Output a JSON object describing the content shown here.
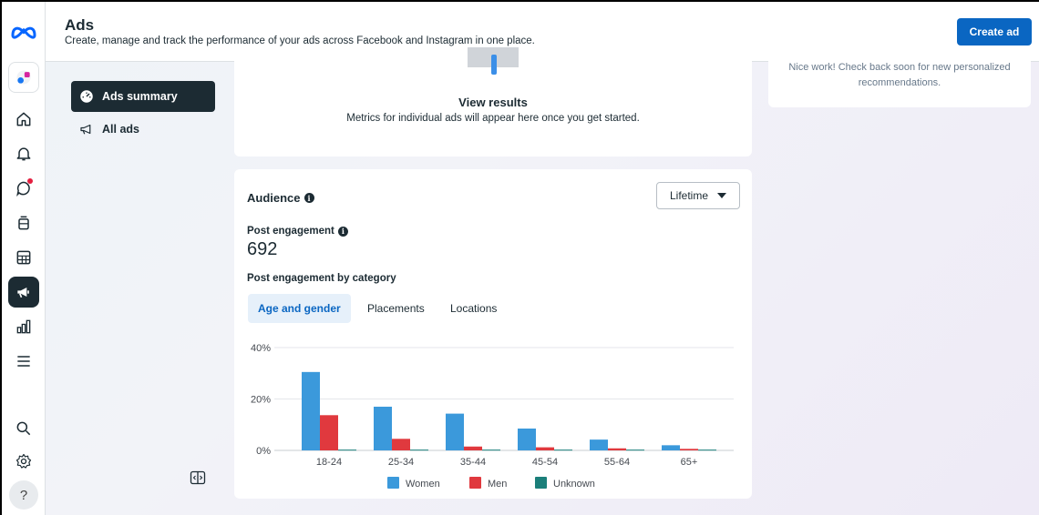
{
  "header": {
    "title": "Ads",
    "subtitle": "Create, manage and track the performance of your ads across Facebook and Instagram in one place.",
    "create_ad_label": "Create ad"
  },
  "rail": {
    "items": [
      "meta-logo-icon",
      "page-avatar-icon",
      "home-icon",
      "notifications-icon",
      "messages-icon",
      "content-icon",
      "planner-icon",
      "ads-icon",
      "insights-icon",
      "menu-icon",
      "search-icon",
      "settings-icon",
      "help-icon"
    ],
    "help_label": "?"
  },
  "nav": {
    "items": [
      {
        "label": "Ads summary",
        "icon": "dashboard-icon",
        "active": true
      },
      {
        "label": "All ads",
        "icon": "megaphone-icon",
        "active": false
      }
    ]
  },
  "results": {
    "title": "View results",
    "description": "Metrics for individual ads will appear here once you get started."
  },
  "recommendations": {
    "text": "Nice work! Check back soon for new personalized recommendations."
  },
  "audience": {
    "title": "Audience",
    "range": "Lifetime",
    "post_engagement_label": "Post engagement",
    "post_engagement_value": "692",
    "by_category_label": "Post engagement by category",
    "tabs": [
      {
        "label": "Age and gender",
        "active": true
      },
      {
        "label": "Placements",
        "active": false
      },
      {
        "label": "Locations",
        "active": false
      }
    ]
  },
  "colors": {
    "women": "#3b99db",
    "men": "#e0393e",
    "unknown": "#1b7f7a",
    "primary": "#0a66c2"
  },
  "chart_data": {
    "type": "bar",
    "categories": [
      "18-24",
      "25-34",
      "35-44",
      "45-54",
      "55-64",
      "65+"
    ],
    "series": [
      {
        "name": "Women",
        "values": [
          30.5,
          17,
          14.3,
          8.5,
          4.2,
          2
        ]
      },
      {
        "name": "Men",
        "values": [
          13.7,
          4.5,
          1.5,
          1.2,
          0.8,
          0.6
        ]
      },
      {
        "name": "Unknown",
        "values": [
          0.3,
          0.3,
          0.3,
          0.3,
          0.3,
          0.3
        ]
      }
    ],
    "yticks": [
      "0%",
      "20%",
      "40%"
    ],
    "ylim": [
      0,
      40
    ],
    "legend_position": "bottom",
    "grid": true
  }
}
